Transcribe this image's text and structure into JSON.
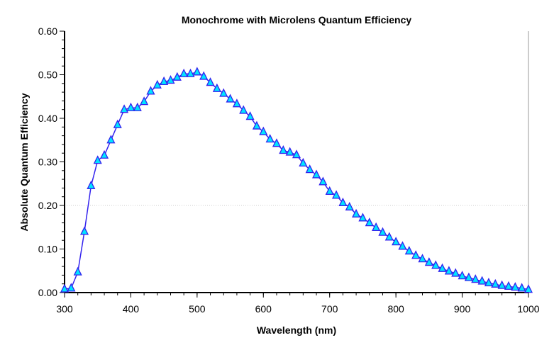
{
  "chart_data": {
    "type": "line",
    "title": "Monochrome with Microlens Quantum Efficiency",
    "xlabel": "Wavelength (nm)",
    "ylabel": "Absolute Quantum Efficiency",
    "xlim": [
      300,
      1000
    ],
    "ylim": [
      0,
      0.6
    ],
    "xticks": [
      "300",
      "400",
      "500",
      "600",
      "700",
      "800",
      "900",
      "1000"
    ],
    "yticks": [
      "0.00",
      "0.10",
      "0.20",
      "0.30",
      "0.40",
      "0.50",
      "0.60"
    ],
    "grid": "dotted line at 0.20",
    "line_color": "#3322ee",
    "marker": "triangle",
    "marker_color": "#00e5ff",
    "x": [
      300,
      310,
      320,
      330,
      340,
      350,
      360,
      370,
      380,
      390,
      400,
      410,
      420,
      430,
      440,
      450,
      460,
      470,
      480,
      490,
      500,
      510,
      520,
      530,
      540,
      550,
      560,
      570,
      580,
      590,
      600,
      610,
      620,
      630,
      640,
      650,
      660,
      670,
      680,
      690,
      700,
      710,
      720,
      730,
      740,
      750,
      760,
      770,
      780,
      790,
      800,
      810,
      820,
      830,
      840,
      850,
      860,
      870,
      880,
      890,
      900,
      910,
      920,
      930,
      940,
      950,
      960,
      970,
      980,
      990,
      1000
    ],
    "y": [
      0.008,
      0.01,
      0.047,
      0.14,
      0.245,
      0.303,
      0.315,
      0.35,
      0.385,
      0.42,
      0.424,
      0.424,
      0.438,
      0.462,
      0.476,
      0.484,
      0.487,
      0.494,
      0.502,
      0.502,
      0.506,
      0.496,
      0.482,
      0.468,
      0.457,
      0.444,
      0.433,
      0.418,
      0.404,
      0.382,
      0.369,
      0.352,
      0.342,
      0.326,
      0.322,
      0.316,
      0.297,
      0.282,
      0.27,
      0.254,
      0.232,
      0.223,
      0.206,
      0.196,
      0.18,
      0.171,
      0.16,
      0.149,
      0.138,
      0.127,
      0.116,
      0.106,
      0.095,
      0.085,
      0.077,
      0.069,
      0.062,
      0.055,
      0.049,
      0.044,
      0.038,
      0.034,
      0.03,
      0.026,
      0.022,
      0.019,
      0.016,
      0.014,
      0.012,
      0.01,
      0.007
    ]
  }
}
